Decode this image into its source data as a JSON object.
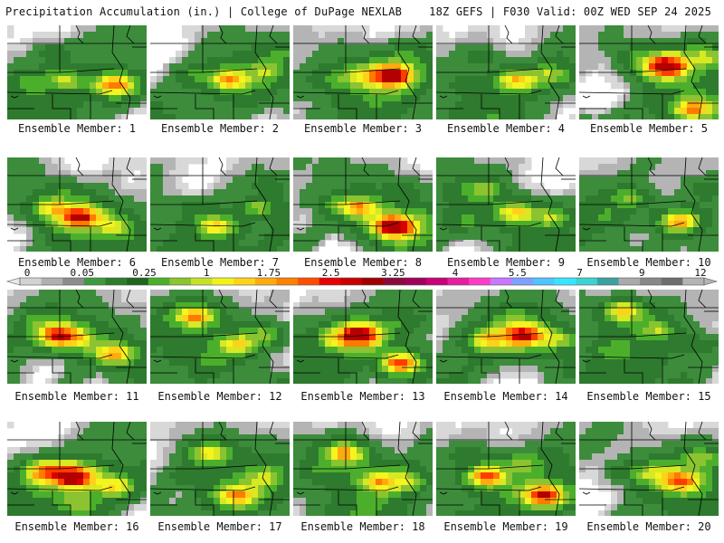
{
  "header": {
    "left": "Precipitation Accumulation (in.) | College of DuPage NEXLAB",
    "right": "18Z GEFS | F030 Valid: 00Z WED SEP 24 2025"
  },
  "caption_prefix": "Ensemble Member:",
  "members": [
    {
      "label": "Ensemble Member: 1",
      "max_in": 1.8,
      "peaks": [
        [
          0.75,
          0.6,
          1.8
        ],
        [
          0.4,
          0.55,
          0.6
        ],
        [
          0.3,
          0.25,
          0.25
        ],
        [
          0.15,
          0.55,
          0.25
        ]
      ]
    },
    {
      "label": "Ensemble Member: 2",
      "max_in": 1.4,
      "peaks": [
        [
          0.55,
          0.55,
          1.4
        ],
        [
          0.8,
          0.45,
          0.5
        ],
        [
          0.3,
          0.5,
          0.25
        ],
        [
          0.9,
          0.25,
          0.25
        ]
      ]
    },
    {
      "label": "Ensemble Member: 3",
      "max_in": 3.3,
      "peaks": [
        [
          0.68,
          0.5,
          3.3
        ],
        [
          0.45,
          0.5,
          0.6
        ],
        [
          0.25,
          0.55,
          0.25
        ],
        [
          0.8,
          0.25,
          0.25
        ]
      ]
    },
    {
      "label": "Ensemble Member: 4",
      "max_in": 1.2,
      "peaks": [
        [
          0.55,
          0.55,
          1.2
        ],
        [
          0.8,
          0.5,
          0.6
        ],
        [
          0.3,
          0.3,
          0.25
        ],
        [
          0.2,
          0.6,
          0.25
        ]
      ]
    },
    {
      "label": "Ensemble Member: 5",
      "max_in": 3.3,
      "peaks": [
        [
          0.6,
          0.4,
          3.3
        ],
        [
          0.8,
          0.85,
          1.5
        ],
        [
          0.35,
          0.3,
          0.25
        ],
        [
          0.9,
          0.3,
          0.6
        ]
      ]
    },
    {
      "label": "Ensemble Member: 6",
      "max_in": 2.5,
      "peaks": [
        [
          0.5,
          0.6,
          2.5
        ],
        [
          0.3,
          0.5,
          1.0
        ],
        [
          0.75,
          0.7,
          0.6
        ],
        [
          0.4,
          0.3,
          0.25
        ]
      ]
    },
    {
      "label": "Ensemble Member: 7",
      "max_in": 1.2,
      "peaks": [
        [
          0.45,
          0.7,
          1.2
        ],
        [
          0.75,
          0.5,
          0.6
        ],
        [
          0.3,
          0.5,
          0.25
        ],
        [
          0.8,
          0.25,
          0.25
        ]
      ]
    },
    {
      "label": "Ensemble Member: 8",
      "max_in": 3.3,
      "peaks": [
        [
          0.7,
          0.7,
          3.3
        ],
        [
          0.45,
          0.5,
          1.5
        ],
        [
          0.25,
          0.45,
          0.25
        ],
        [
          0.75,
          0.3,
          0.25
        ]
      ]
    },
    {
      "label": "Ensemble Member: 9",
      "max_in": 1.2,
      "peaks": [
        [
          0.55,
          0.55,
          1.2
        ],
        [
          0.3,
          0.3,
          0.6
        ],
        [
          0.8,
          0.6,
          0.6
        ],
        [
          0.2,
          0.65,
          0.25
        ]
      ]
    },
    {
      "label": "Ensemble Member: 10",
      "max_in": 1.5,
      "peaks": [
        [
          0.7,
          0.65,
          1.5
        ],
        [
          0.35,
          0.4,
          0.6
        ],
        [
          0.85,
          0.3,
          0.25
        ],
        [
          0.2,
          0.6,
          0.25
        ]
      ]
    },
    {
      "label": "Ensemble Member: 11",
      "max_in": 2.4,
      "peaks": [
        [
          0.35,
          0.45,
          2.4
        ],
        [
          0.75,
          0.65,
          1.4
        ],
        [
          0.5,
          0.5,
          0.6
        ],
        [
          0.2,
          0.3,
          0.25
        ]
      ]
    },
    {
      "label": "Ensemble Member: 12",
      "max_in": 1.5,
      "peaks": [
        [
          0.3,
          0.25,
          1.5
        ],
        [
          0.6,
          0.55,
          1.0
        ],
        [
          0.8,
          0.45,
          0.6
        ],
        [
          0.4,
          0.7,
          0.25
        ]
      ]
    },
    {
      "label": "Ensemble Member: 13",
      "max_in": 3.3,
      "peaks": [
        [
          0.45,
          0.45,
          3.3
        ],
        [
          0.75,
          0.75,
          2.0
        ],
        [
          0.3,
          0.5,
          0.6
        ],
        [
          0.8,
          0.3,
          0.25
        ]
      ]
    },
    {
      "label": "Ensemble Member: 14",
      "max_in": 2.5,
      "peaks": [
        [
          0.6,
          0.45,
          2.5
        ],
        [
          0.35,
          0.5,
          1.0
        ],
        [
          0.85,
          0.5,
          0.6
        ],
        [
          0.5,
          0.25,
          0.25
        ]
      ]
    },
    {
      "label": "Ensemble Member: 15",
      "max_in": 1.2,
      "peaks": [
        [
          0.3,
          0.2,
          1.2
        ],
        [
          0.55,
          0.4,
          0.6
        ],
        [
          0.85,
          0.55,
          0.25
        ],
        [
          0.2,
          0.6,
          0.25
        ]
      ]
    },
    {
      "label": "Ensemble Member: 16",
      "max_in": 3.3,
      "peaks": [
        [
          0.45,
          0.55,
          3.3
        ],
        [
          0.25,
          0.5,
          1.5
        ],
        [
          0.75,
          0.65,
          1.0
        ],
        [
          0.5,
          0.85,
          0.6
        ]
      ]
    },
    {
      "label": "Ensemble Member: 17",
      "max_in": 1.5,
      "peaks": [
        [
          0.6,
          0.75,
          1.5
        ],
        [
          0.4,
          0.3,
          1.0
        ],
        [
          0.8,
          0.55,
          0.6
        ],
        [
          0.25,
          0.55,
          0.25
        ]
      ]
    },
    {
      "label": "Ensemble Member: 18",
      "max_in": 1.5,
      "peaks": [
        [
          0.35,
          0.3,
          1.5
        ],
        [
          0.6,
          0.6,
          1.2
        ],
        [
          0.8,
          0.6,
          0.6
        ],
        [
          0.2,
          0.5,
          0.25
        ]
      ]
    },
    {
      "label": "Ensemble Member: 19",
      "max_in": 2.5,
      "peaks": [
        [
          0.75,
          0.75,
          2.5
        ],
        [
          0.35,
          0.55,
          2.0
        ],
        [
          0.6,
          0.4,
          0.6
        ],
        [
          0.2,
          0.3,
          0.25
        ]
      ]
    },
    {
      "label": "Ensemble Member: 20",
      "max_in": 1.8,
      "peaks": [
        [
          0.7,
          0.6,
          1.8
        ],
        [
          0.5,
          0.5,
          0.6
        ],
        [
          0.85,
          0.35,
          0.6
        ],
        [
          0.3,
          0.5,
          0.25
        ]
      ]
    }
  ],
  "colorbar": {
    "labels": [
      "0",
      "0.05",
      "0.25",
      "1",
      "1.75",
      "2.5",
      "3.25",
      "4",
      "5.5",
      "7",
      "9",
      "12"
    ],
    "colors": [
      "#d2d2d2",
      "#b0b0b0",
      "#8c8c8c",
      "#3f9a3f",
      "#2e7d2e",
      "#1f661f",
      "#4caf2c",
      "#8bc430",
      "#c6e02a",
      "#f2f21a",
      "#ffd21a",
      "#ffaa0f",
      "#ff8000",
      "#ff4d00",
      "#e60000",
      "#c80000",
      "#a00000",
      "#8b0a3c",
      "#a0005a",
      "#c8007a",
      "#e61ea0",
      "#ff3cc8",
      "#c878ff",
      "#7fa0ff",
      "#4fc4ff",
      "#36e6ff",
      "#3cd2d2",
      "#3ca0a0",
      "#aaaaaa",
      "#888888",
      "#6e6e6e",
      "#b4b4b4"
    ]
  }
}
